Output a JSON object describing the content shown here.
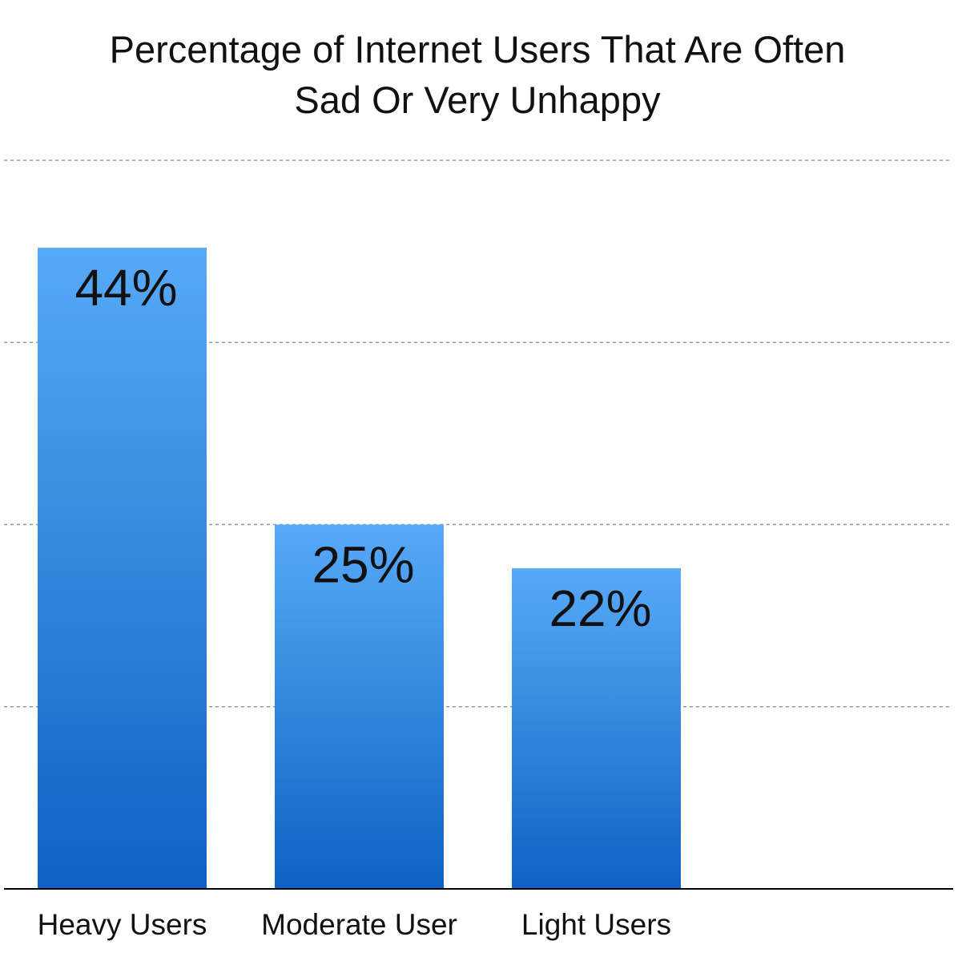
{
  "chart_data": {
    "type": "bar",
    "title": "Percentage of Internet Users That Are Often Sad Or Very Unhappy",
    "title_lines": [
      "Percentage of Internet Users That Are Often",
      "Sad Or Very Unhappy"
    ],
    "categories": [
      "Heavy Users",
      "Moderate User",
      "Light Users"
    ],
    "values": [
      44,
      25,
      22
    ],
    "data_labels": [
      "44%",
      "25%",
      "22%"
    ],
    "xlabel": "",
    "ylabel": "",
    "ylim": [
      0,
      50
    ],
    "gridlines": [
      12.5,
      25,
      37.5,
      50
    ],
    "grid": true,
    "legend": "none",
    "bar_color_top": "#57aaf7",
    "bar_color_bottom": "#1061c2"
  }
}
